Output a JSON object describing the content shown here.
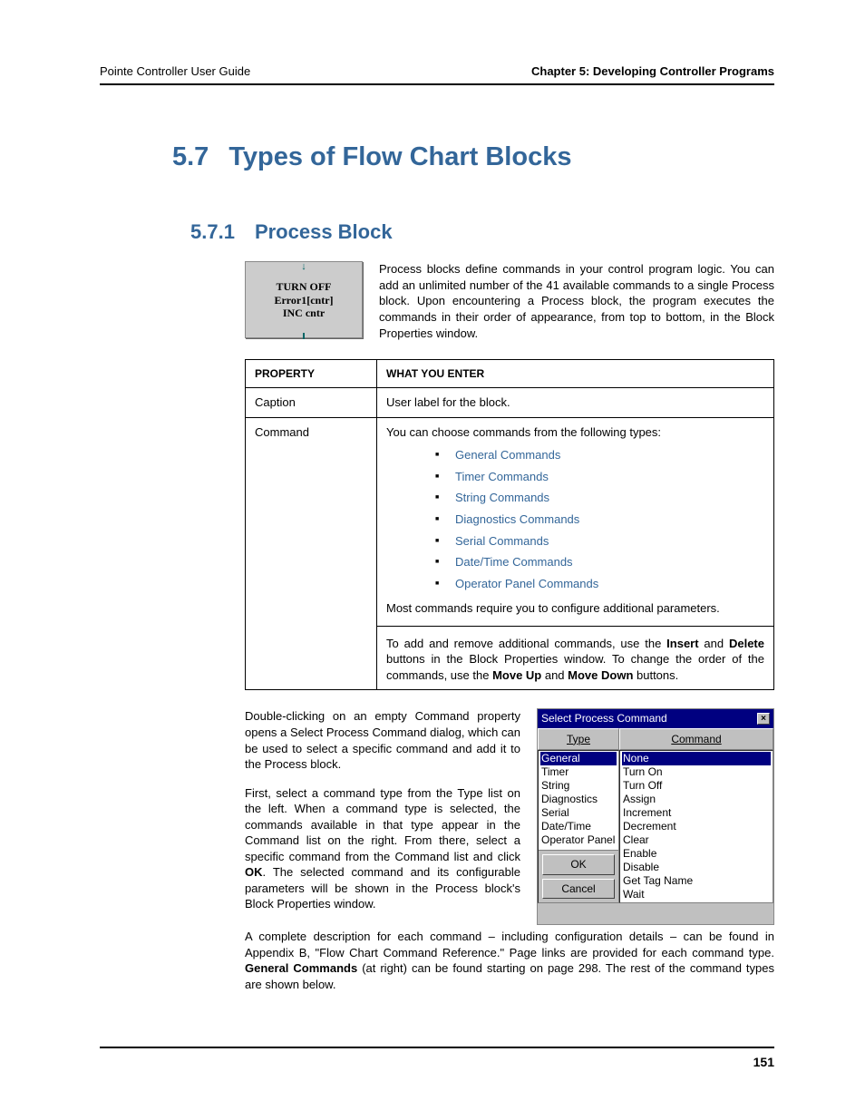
{
  "header": {
    "left": "Pointe Controller User Guide",
    "right": "Chapter 5: Developing Controller Programs"
  },
  "h1": {
    "num": "5.7",
    "title": "Types of Flow Chart Blocks"
  },
  "h2": {
    "num": "5.7.1",
    "title": "Process Block"
  },
  "block_figure": {
    "line1": "TURN OFF",
    "line2": "Error1[cntr]",
    "line3": "INC cntr"
  },
  "intro": "Process blocks define commands in your control program logic. You can add an unlimited number of the 41 available commands to a single Process block. Upon encountering a Process block, the program executes the commands in their order of appearance, from top to bottom, in the Block Properties window.",
  "table": {
    "hdr1": "PROPERTY",
    "hdr2": "WHAT YOU ENTER",
    "r1c1": "Caption",
    "r1c2": "User label for the block.",
    "r2c1": "Command",
    "r2_lead": "You can choose commands from the following types:",
    "cmds": [
      "General Commands",
      "Timer Commands",
      "String Commands",
      "Diagnostics Commands",
      "Serial Commands",
      "Date/Time Commands",
      "Operator Panel Commands"
    ],
    "r2_after": "Most commands require you to configure additional parameters.",
    "r2_p2a": "To add and remove additional commands, use the ",
    "r2_p2b": "Insert",
    "r2_p2c": " and ",
    "r2_p2d": "Delete",
    "r2_p2e": " buttons in the Block Properties window. To change the order of the commands, use the ",
    "r2_p2f": "Move Up",
    "r2_p2g": " and ",
    "r2_p2h": "Move Down",
    "r2_p2i": " buttons."
  },
  "wrap": {
    "p1": "Double-clicking on an empty Command property opens a Select Process Command dialog, which can be used to select a specific command and add it to the Process block.",
    "p2a": "First, select a command type from the Type list on the left. When a command type is selected, the commands available in that type appear in the Command list on the right. From there, select a specific command from the Command list and click ",
    "p2b": "OK",
    "p2c": ". The selected command and its configurable parameters will be shown in the Process block's Block Properties window.",
    "p3a": "A complete description for each command – including configuration details – can be found in Appendix B, \"Flow Chart Command Reference.\" Page links are provided for each command type. ",
    "p3b": "General Commands",
    "p3c": " (at right) can be found starting on page 298. The rest of the command types are shown below."
  },
  "dialog": {
    "title": "Select Process Command",
    "hdr_type": "Type",
    "hdr_cmd": "Command",
    "types": [
      "General",
      "Timer",
      "String",
      "Diagnostics",
      "Serial",
      "Date/Time",
      "Operator Panel"
    ],
    "cmds": [
      "None",
      "Turn On",
      "Turn Off",
      "Assign",
      "Increment",
      "Decrement",
      "Clear",
      "Enable",
      "Disable",
      "Get Tag Name",
      "Wait"
    ],
    "ok": "OK",
    "cancel": "Cancel"
  },
  "footer": {
    "page": "151"
  }
}
